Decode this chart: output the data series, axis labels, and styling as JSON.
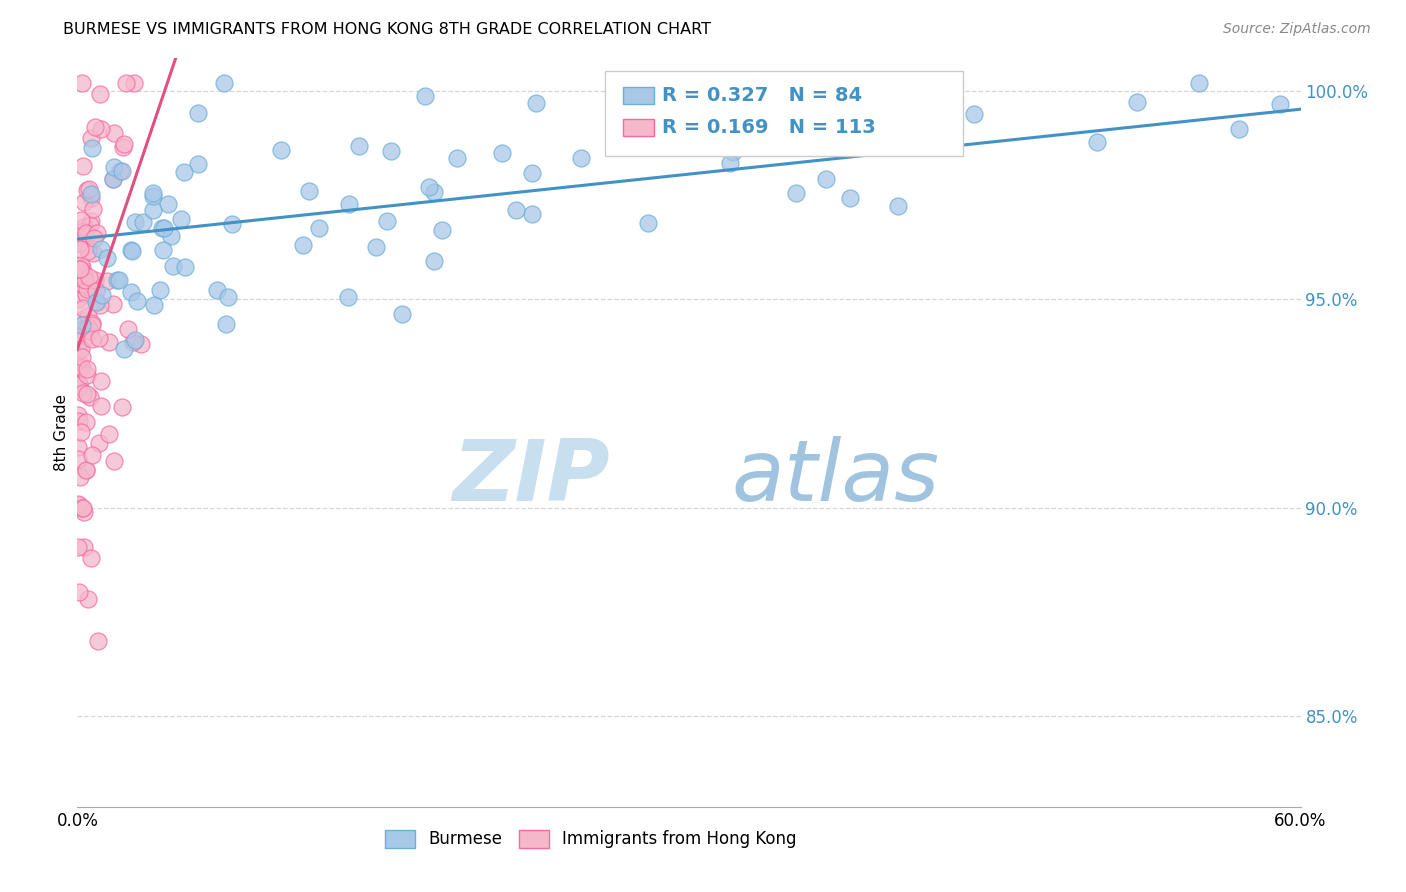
{
  "title": "BURMESE VS IMMIGRANTS FROM HONG KONG 8TH GRADE CORRELATION CHART",
  "source": "Source: ZipAtlas.com",
  "ylabel": "8th Grade",
  "x_min": 0.0,
  "x_max": 0.6,
  "y_min": 0.828,
  "y_max": 1.008,
  "burmese_color": "#a8c8e8",
  "hk_color": "#f4b8cb",
  "burmese_edge": "#6baed6",
  "hk_edge": "#f768a1",
  "trend_blue": "#4292c6",
  "trend_pink": "#e05080",
  "legend_R_blue": "0.327",
  "legend_N_blue": "84",
  "legend_R_pink": "0.169",
  "legend_N_pink": "113",
  "title_fontsize": 11.5,
  "source_fontsize": 10,
  "tick_fontsize": 12,
  "ytick_color": "#4292c6",
  "blue_trend_intercept": 0.9645,
  "blue_trend_slope": 0.052,
  "pink_trend_intercept": 0.938,
  "pink_trend_slope": 1.45
}
